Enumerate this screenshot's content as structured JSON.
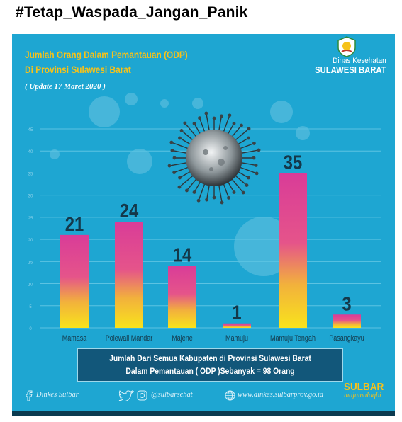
{
  "post": {
    "hashtag": "#Tetap_Waspada_Jangan_Panik"
  },
  "header": {
    "title_line1": "Jumlah Orang Dalam Pemantauan (ODP)",
    "title_line2": "Di Provinsi Sulawesi Barat",
    "update": "( Update 17 Maret 2020 )",
    "org_line1": "Dinas Kesehatan",
    "org_line2": "SULAWESI BARAT"
  },
  "chart_data": {
    "type": "bar",
    "categories": [
      "Mamasa",
      "Polewali Mandar",
      "Majene",
      "Mamuju",
      "Mamuju Tengah",
      "Pasangkayu"
    ],
    "values": [
      21,
      24,
      14,
      1,
      35,
      3
    ],
    "yticks": [
      0,
      5,
      10,
      15,
      20,
      25,
      30,
      35,
      40,
      45
    ],
    "ylim": [
      0,
      45
    ],
    "grid": true,
    "colors": {
      "top": "#d93c98",
      "bottom": "#f8e31c",
      "grid": "#5cc3e2",
      "label": "#14384a"
    }
  },
  "summary": {
    "line1": "Jumlah Dari Semua Kabupaten di Provinsi Sulawesi Barat",
    "line2": "Dalam Pemantauan ( ODP )Sebanyak = 98 Orang"
  },
  "social": {
    "facebook": "Dinkes Sulbar",
    "twitter_instagram": "@sulbarsehat",
    "website": "www.dinkes.sulbarprov.go.id"
  },
  "brand": {
    "name": "SULBAR",
    "tagline": "majumalaqbi"
  }
}
